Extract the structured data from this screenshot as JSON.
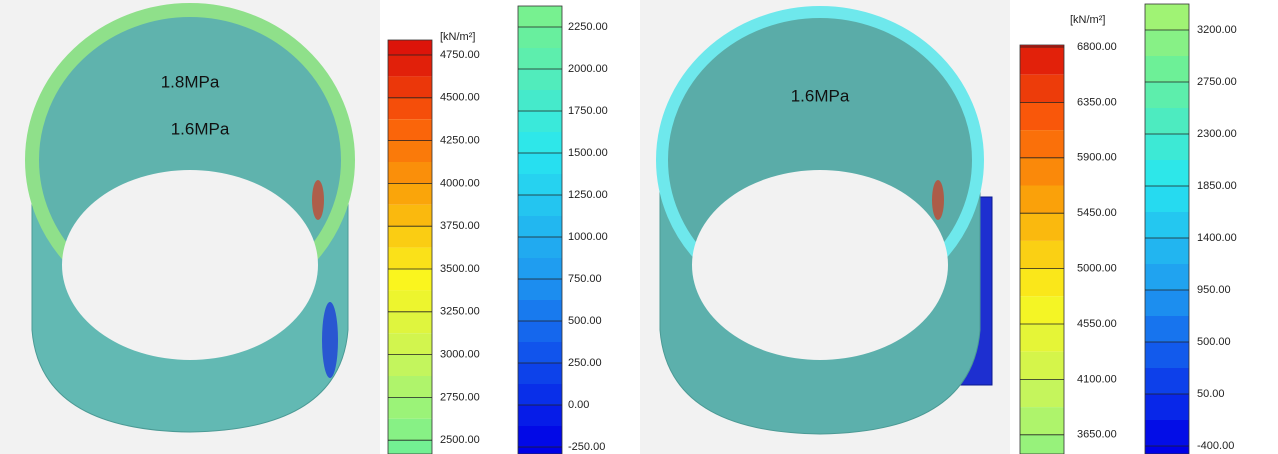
{
  "left_panel": {
    "annotations": [
      "1.8MPa",
      "1.6MPa"
    ],
    "legend_top": {
      "unit": "[kN/m²]",
      "labels": [
        "4750.00",
        "4500.00",
        "4250.00",
        "4000.00",
        "3750.00",
        "3500.00",
        "3250.00",
        "3000.00",
        "2750.00",
        "2500.00"
      ]
    },
    "legend_bottom": {
      "labels": [
        "2250.00",
        "2000.00",
        "1750.00",
        "1500.00",
        "1250.00",
        "1000.00",
        "750.00",
        "500.00",
        "250.00",
        "0.00",
        "-250.00"
      ]
    }
  },
  "right_panel": {
    "annotations": [
      "1.6MPa"
    ],
    "legend_top": {
      "unit": "[kN/m²]",
      "labels": [
        "6800.00",
        "6350.00",
        "5900.00",
        "5450.00",
        "5000.00",
        "4550.00",
        "4100.00",
        "3650.00"
      ]
    },
    "legend_bottom": {
      "labels": [
        "3200.00",
        "2750.00",
        "2300.00",
        "1850.00",
        "1400.00",
        "950.00",
        "500.00",
        "50.00",
        "-400.00"
      ]
    }
  }
}
